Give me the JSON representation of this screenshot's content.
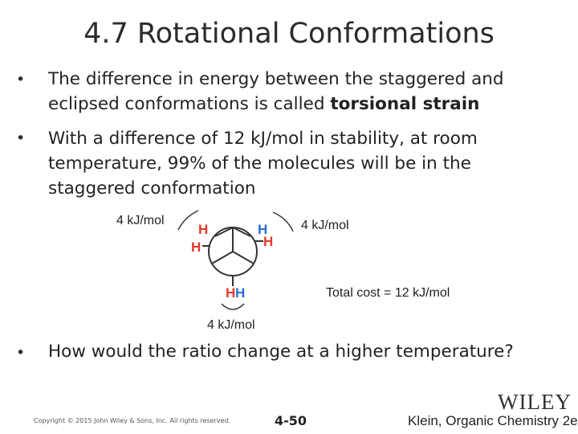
{
  "slide": {
    "title": "4.7 Rotational Conformations",
    "bullets": [
      {
        "marker": "•",
        "pre": "The difference in energy between the staggered and eclipsed conformations is called ",
        "bold": "torsional strain"
      },
      {
        "marker": "•",
        "text": "With a difference of 12 kJ/mol in stability, at room temperature, 99% of the molecules will be in the staggered conformation"
      },
      {
        "marker": "•",
        "text": "How would the ratio change at a higher temperature?"
      }
    ]
  },
  "diagram": {
    "label_top_left": "4 kJ/mol",
    "label_top_right": "4 kJ/mol",
    "label_bottom": "4 kJ/mol",
    "total_cost": "Total cost = 12 kJ/mol",
    "atom_h": "H",
    "colors": {
      "front_h": "#e03a2a",
      "back_h": "#2a6fd1",
      "bonds": "#333333"
    }
  },
  "footer": {
    "copyright": "Copyright © 2015 John Wiley & Sons, Inc. All rights reserved.",
    "page": "4-50",
    "reference": "Klein, Organic Chemistry 2e",
    "publisher_logo": "WILEY"
  }
}
